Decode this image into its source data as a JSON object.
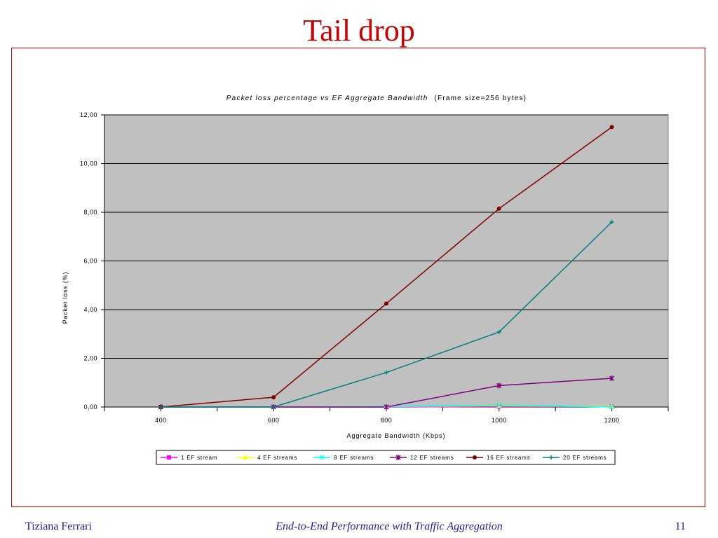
{
  "slide": {
    "title": "Tail drop",
    "footer_left": "Tiziana Ferrari",
    "footer_center": "End-to-End Performance with Traffic Aggregation",
    "page_number": "11"
  },
  "chart_data": {
    "type": "line",
    "title_italic": "Packet loss percentage vs EF Aggregate Bandwidth",
    "title_rest": "(Frame size=256 bytes)",
    "xlabel": "Aggregate Bandwidth (Kbps)",
    "ylabel": "Packet loss (%)",
    "x": [
      400,
      600,
      800,
      1000,
      1200
    ],
    "x_tick_labels": [
      "400",
      "600",
      "800",
      "1000",
      "1200"
    ],
    "y_tick_labels": [
      "0,00",
      "2,00",
      "4,00",
      "6,00",
      "8,00",
      "10,00",
      "12,00"
    ],
    "ylim": [
      0,
      12
    ],
    "y_ticks": [
      0,
      2,
      4,
      6,
      8,
      10,
      12
    ],
    "grid": "horizontal",
    "plot_background": "#c0c0c0",
    "legend_position": "bottom",
    "series": [
      {
        "name": "1 EF stream",
        "color": "#ff00ff",
        "marker": "square",
        "values": [
          0,
          0,
          0,
          0.02,
          0.02
        ]
      },
      {
        "name": "4 EF streams",
        "color": "#ffff00",
        "marker": "triangle",
        "values": [
          0,
          0,
          0.02,
          0.05,
          0.02
        ]
      },
      {
        "name": "8 EF streams",
        "color": "#00ffff",
        "marker": "x",
        "values": [
          0,
          0,
          0.02,
          0.08,
          0
        ]
      },
      {
        "name": "12 EF streams",
        "color": "#800080",
        "marker": "star",
        "values": [
          0,
          0,
          0,
          0.88,
          1.18
        ]
      },
      {
        "name": "16 EF streams",
        "color": "#800000",
        "marker": "circle",
        "values": [
          0,
          0.4,
          4.25,
          8.15,
          11.5
        ]
      },
      {
        "name": "20 EF streams",
        "color": "#008080",
        "marker": "plus",
        "values": [
          0,
          0,
          1.42,
          3.08,
          7.6
        ]
      }
    ]
  }
}
